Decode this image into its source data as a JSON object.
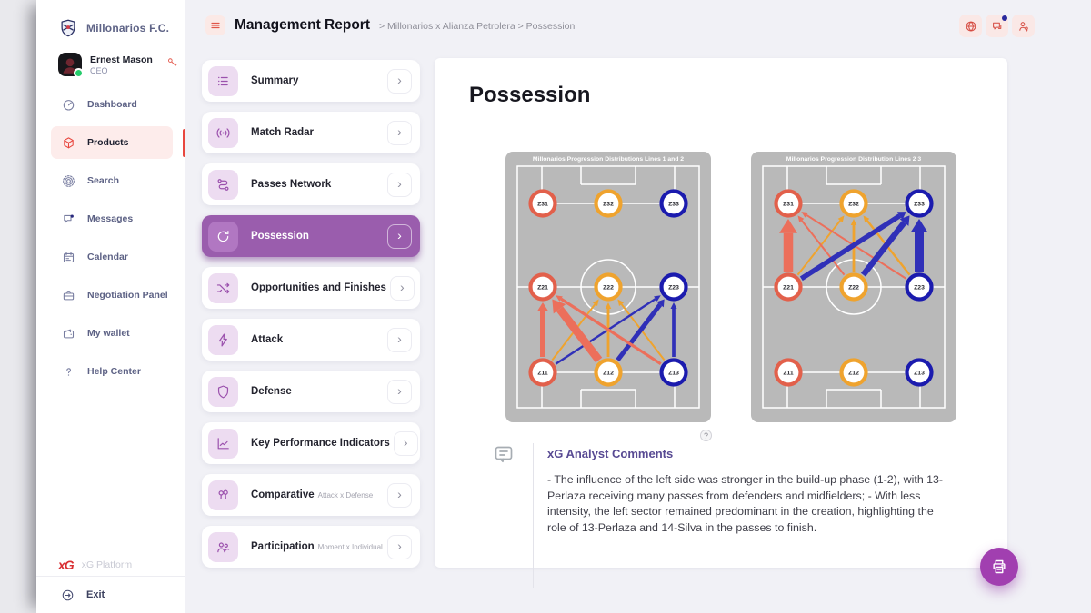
{
  "colors": {
    "accent_red": "#e8473f",
    "menu_purple": "#9a5dad",
    "pitch_gray": "#b9b9b9",
    "flows": {
      "red": "#ec6f5b",
      "orange": "#efa32e",
      "blue": "#3030b8"
    },
    "zone_columns": [
      "#e2604b",
      "#efa32e",
      "#1b1bae"
    ]
  },
  "sidebar": {
    "club_name": "Millonarios F.C.",
    "user": {
      "name": "Ernest Mason",
      "role": "CEO"
    },
    "items": [
      {
        "label": "Dashboard",
        "icon": "gauge-icon",
        "active": false
      },
      {
        "label": "Products",
        "icon": "cube-icon",
        "active": true
      },
      {
        "label": "Search",
        "icon": "target-icon",
        "active": false
      },
      {
        "label": "Messages",
        "icon": "chat-icon",
        "active": false
      },
      {
        "label": "Calendar",
        "icon": "calendar-icon",
        "active": false
      },
      {
        "label": "Negotiation Panel",
        "icon": "briefcase-icon",
        "active": false
      },
      {
        "label": "My wallet",
        "icon": "wallet-icon",
        "active": false
      },
      {
        "label": "Help Center",
        "icon": "question-icon",
        "active": false
      }
    ],
    "platform": {
      "logo": "xG",
      "label": "xG Platform"
    },
    "exit_label": "Exit"
  },
  "header": {
    "title": "Management Report",
    "breadcrumb": "> Millonarios x Alianza Petrolera > Possession",
    "icons": [
      "globe-icon",
      "messages-icon",
      "account-key-icon"
    ]
  },
  "menu": {
    "chevron_glyph": "›",
    "items": [
      {
        "label": "Summary",
        "sublabel": "",
        "icon": "list-icon",
        "selected": false
      },
      {
        "label": "Match Radar",
        "sublabel": "",
        "icon": "radar-icon",
        "selected": false
      },
      {
        "label": "Passes Network",
        "sublabel": "",
        "icon": "network-icon",
        "selected": false
      },
      {
        "label": "Possession",
        "sublabel": "",
        "icon": "possession-icon",
        "selected": true
      },
      {
        "label": "Opportunities and Finishes",
        "sublabel": "",
        "icon": "shuffle-icon",
        "selected": false
      },
      {
        "label": "Attack",
        "sublabel": "",
        "icon": "bolt-icon",
        "selected": false
      },
      {
        "label": "Defense",
        "sublabel": "",
        "icon": "shield-icon",
        "selected": false
      },
      {
        "label": "Key Performance Indicators",
        "sublabel": "",
        "icon": "chart-line-icon",
        "selected": false
      },
      {
        "label": "Comparative",
        "sublabel": "Attack x Defense",
        "icon": "balloons-icon",
        "selected": false
      },
      {
        "label": "Participation",
        "sublabel": "Moment x Individual",
        "icon": "people-icon",
        "selected": false
      }
    ]
  },
  "content": {
    "title": "Possession",
    "help_glyph": "?",
    "comments": {
      "heading": "xG Analyst Comments",
      "body": "- The influence of the left side was stronger in the build-up phase (1-2), with 13-Perlaza receiving many passes from defenders and midfielders; - With less intensity, the left sector remained predominant in the creation, highlighting the role of 13-Perlaza and 14-Silva in the passes to finish."
    }
  },
  "chart_data": {
    "type": "flow-pitch",
    "zones": [
      {
        "id": "Z31",
        "label": "Z31",
        "col": 0,
        "row": 0
      },
      {
        "id": "Z32",
        "label": "Z32",
        "col": 1,
        "row": 0
      },
      {
        "id": "Z33",
        "label": "Z33",
        "col": 2,
        "row": 0
      },
      {
        "id": "Z21",
        "label": "Z21",
        "col": 0,
        "row": 1
      },
      {
        "id": "Z22",
        "label": "Z22",
        "col": 1,
        "row": 1
      },
      {
        "id": "Z23",
        "label": "Z23",
        "col": 2,
        "row": 1
      },
      {
        "id": "Z11",
        "label": "Z11",
        "col": 0,
        "row": 2
      },
      {
        "id": "Z12",
        "label": "Z12",
        "col": 1,
        "row": 2
      },
      {
        "id": "Z13",
        "label": "Z13",
        "col": 2,
        "row": 2
      }
    ],
    "items": [
      {
        "title": "Millonarios Progression Distributions Lines 1 and 2",
        "flows": [
          {
            "from": "Z11",
            "to": "Z22",
            "color": "orange",
            "width": 2
          },
          {
            "from": "Z12",
            "to": "Z22",
            "color": "orange",
            "width": 2.8
          },
          {
            "from": "Z13",
            "to": "Z22",
            "color": "orange",
            "width": 2
          },
          {
            "from": "Z11",
            "to": "Z23",
            "color": "blue",
            "width": 2.4
          },
          {
            "from": "Z12",
            "to": "Z23",
            "color": "blue",
            "width": 5
          },
          {
            "from": "Z13",
            "to": "Z23",
            "color": "blue",
            "width": 3.7
          },
          {
            "from": "Z13",
            "to": "Z21",
            "color": "red",
            "width": 3.2
          },
          {
            "from": "Z11",
            "to": "Z21",
            "color": "red",
            "width": 6
          },
          {
            "from": "Z12",
            "to": "Z21",
            "color": "red",
            "width": 9
          }
        ]
      },
      {
        "title": "Millonarios Progression Distribution Lines 2 3",
        "flows": [
          {
            "from": "Z21",
            "to": "Z32",
            "color": "orange",
            "width": 2
          },
          {
            "from": "Z22",
            "to": "Z32",
            "color": "orange",
            "width": 2.8
          },
          {
            "from": "Z23",
            "to": "Z32",
            "color": "orange",
            "width": 2.4
          },
          {
            "from": "Z22",
            "to": "Z31",
            "color": "red",
            "width": 2
          },
          {
            "from": "Z23",
            "to": "Z31",
            "color": "red",
            "width": 2
          },
          {
            "from": "Z21",
            "to": "Z31",
            "color": "red",
            "width": 10.5
          },
          {
            "from": "Z21",
            "to": "Z33",
            "color": "blue",
            "width": 5.5
          },
          {
            "from": "Z22",
            "to": "Z33",
            "color": "blue",
            "width": 6.5
          },
          {
            "from": "Z23",
            "to": "Z33",
            "color": "blue",
            "width": 10
          }
        ]
      }
    ]
  },
  "fab": {
    "icon": "printer-icon"
  }
}
